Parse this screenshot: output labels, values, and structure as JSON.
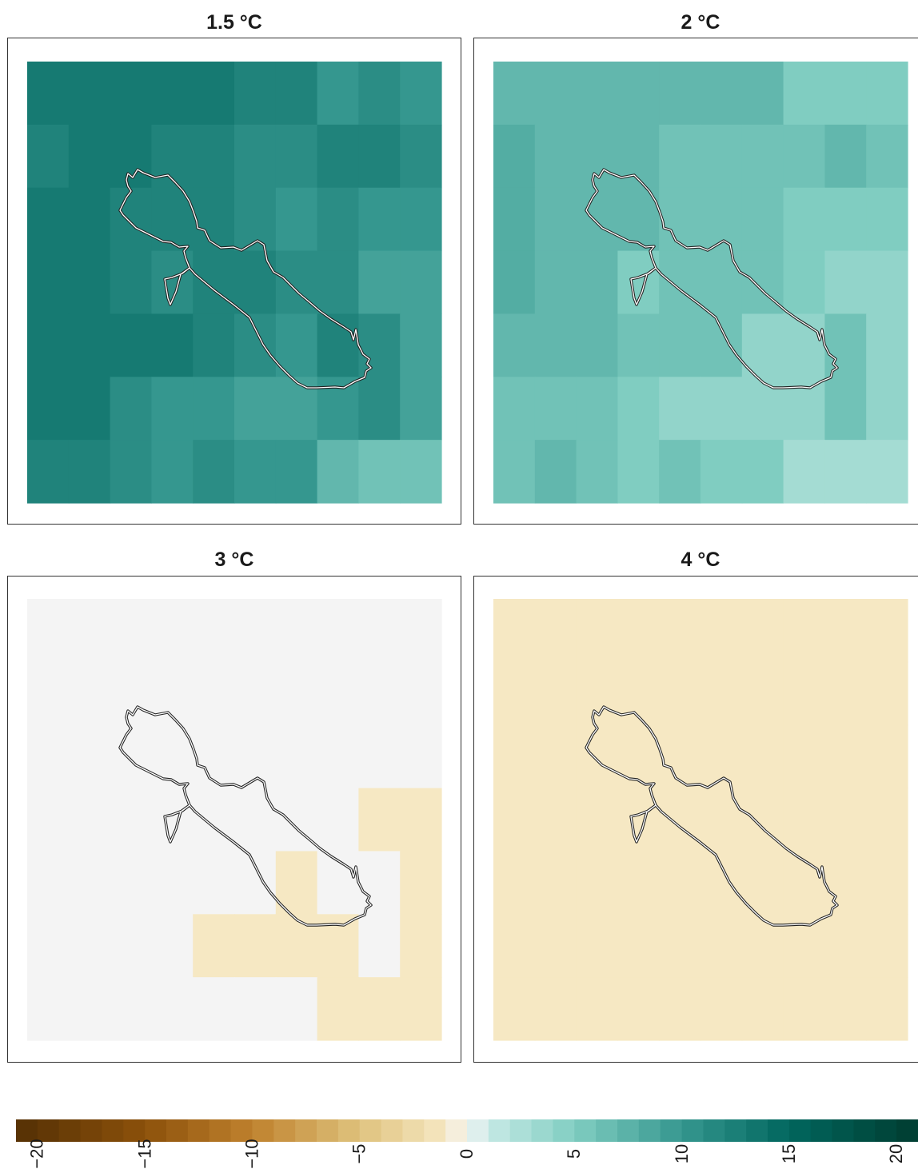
{
  "chart_data": {
    "type": "heatmap",
    "description_scale": "diverging brown–white–teal",
    "colorbar": {
      "range": [
        -21,
        21
      ],
      "ticks": [
        -20,
        -15,
        -10,
        -5,
        0,
        5,
        10,
        15,
        20
      ],
      "tick_labels": [
        "−20",
        "−15",
        "−10",
        "−5",
        "0",
        "5",
        "10",
        "15",
        "20"
      ],
      "placement": "bottom"
    },
    "grid": {
      "rows": 7,
      "cols": 10
    },
    "panels": [
      {
        "title": "1.5 °C",
        "values": [
          [
            13,
            13,
            13,
            13,
            13,
            12,
            12,
            10,
            11,
            10
          ],
          [
            12,
            13,
            13,
            12,
            12,
            11,
            11,
            12,
            12,
            11
          ],
          [
            13,
            13,
            12,
            12,
            12,
            11,
            10,
            11,
            10,
            10
          ],
          [
            13,
            13,
            12,
            11,
            12,
            12,
            11,
            11,
            9,
            9
          ],
          [
            13,
            13,
            13,
            13,
            12,
            11,
            10,
            12,
            11,
            9
          ],
          [
            13,
            13,
            11,
            10,
            10,
            9,
            9,
            10,
            11,
            9
          ],
          [
            12,
            12,
            11,
            10,
            11,
            10,
            10,
            7,
            6,
            6
          ]
        ]
      },
      {
        "title": "2 °C",
        "values": [
          [
            7,
            7,
            7,
            7,
            7,
            7,
            7,
            5,
            5,
            5
          ],
          [
            8,
            7,
            7,
            7,
            6,
            6,
            6,
            6,
            7,
            6
          ],
          [
            8,
            7,
            7,
            7,
            6,
            6,
            6,
            5,
            5,
            5
          ],
          [
            8,
            7,
            7,
            5,
            6,
            6,
            6,
            5,
            4,
            4
          ],
          [
            7,
            7,
            7,
            6,
            6,
            6,
            4,
            4,
            6,
            4
          ],
          [
            6,
            6,
            6,
            5,
            4,
            4,
            4,
            4,
            6,
            4
          ],
          [
            6,
            7,
            6,
            5,
            6,
            5,
            5,
            3,
            3,
            3
          ]
        ]
      },
      {
        "title": "3 °C",
        "values": [
          [
            0,
            0,
            0,
            0,
            0,
            0,
            0,
            0,
            0,
            0
          ],
          [
            0,
            0,
            0,
            0,
            0,
            0,
            0,
            0,
            0,
            0
          ],
          [
            0,
            0,
            0,
            0,
            0,
            0,
            0,
            0,
            0,
            0
          ],
          [
            0,
            0,
            0,
            0,
            0,
            0,
            0,
            0,
            -1,
            -1
          ],
          [
            0,
            0,
            0,
            0,
            0,
            0,
            -1,
            0,
            0,
            -1
          ],
          [
            0,
            0,
            0,
            0,
            -1,
            -1,
            -1,
            -1,
            0,
            -1
          ],
          [
            0,
            0,
            0,
            0,
            0,
            0,
            0,
            -1,
            -1,
            -1
          ]
        ]
      },
      {
        "title": "4 °C",
        "values": [
          [
            -1,
            -1,
            -1,
            -1,
            -1,
            -1,
            -1,
            -1,
            -1,
            -1
          ],
          [
            -1,
            -1,
            -1,
            -1,
            -1,
            -1,
            -1,
            -1,
            -1,
            -1
          ],
          [
            -1,
            -1,
            -1,
            -1,
            -1,
            -1,
            -1,
            -1,
            -1,
            -1
          ],
          [
            -1,
            -1,
            -1,
            -1,
            -1,
            -1,
            -1,
            -1,
            -1,
            -1
          ],
          [
            -1,
            -1,
            -1,
            -1,
            -1,
            -1,
            -1,
            -1,
            -1,
            -1
          ],
          [
            -1,
            -1,
            -1,
            -1,
            -1,
            -1,
            -1,
            -1,
            -1,
            -1
          ],
          [
            -1,
            -1,
            -1,
            -1,
            -1,
            -1,
            -1,
            -1,
            -1,
            -1
          ]
        ]
      }
    ]
  }
}
